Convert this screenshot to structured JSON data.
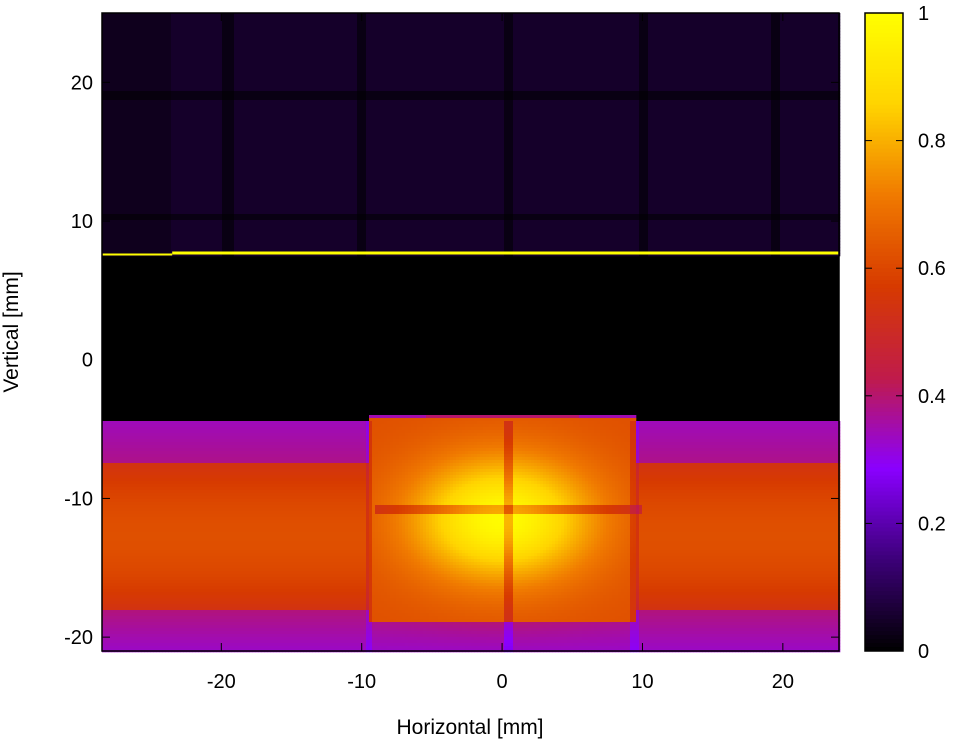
{
  "chart_data": {
    "type": "heatmap",
    "title": "",
    "xlabel": "Horizontal [mm]",
    "ylabel": "Vertical [mm]",
    "xlim": [
      -28.5,
      24
    ],
    "ylim": [
      -21,
      25
    ],
    "xticks": [
      -20,
      -10,
      0,
      10,
      20
    ],
    "yticks": [
      -20,
      -10,
      0,
      10,
      20
    ],
    "colorbar": {
      "range": [
        0,
        1
      ],
      "ticks": [
        0,
        0.2,
        0.4,
        0.6,
        0.8,
        1
      ],
      "colormap": [
        "#000000",
        "#3c0078",
        "#8a00ff",
        "#c01b4a",
        "#d73a00",
        "#f07a00",
        "#ffd400",
        "#ffff00"
      ]
    },
    "features": {
      "edge_line_y_mm": 7.7,
      "dark_gap_mm": [
        -4.5,
        7.5
      ],
      "bright_core_center_mm": [
        0,
        -11.5
      ],
      "inner_pipe_x_mm": [
        -9.5,
        9.5
      ],
      "split_line_x_mm": 0.5,
      "horizontal_split_y_mm": -10.8,
      "lower_beam_range_mm": [
        -21,
        -4.5
      ],
      "upper_background_value": 0.05
    }
  },
  "colors": {
    "background": "#ffffff",
    "axes": "#000000"
  }
}
